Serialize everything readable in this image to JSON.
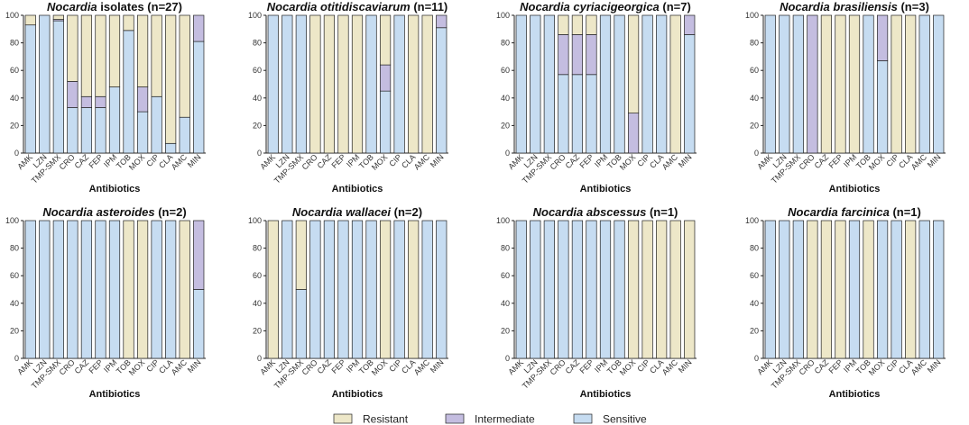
{
  "colors": {
    "Resistant": "#ede7c8",
    "Intermediate": "#c4bde0",
    "Sensitive": "#c6dcf1"
  },
  "legend": [
    {
      "key": "Resistant",
      "label": "Resistant"
    },
    {
      "key": "Intermediate",
      "label": "Intermediate"
    },
    {
      "key": "Sensitive",
      "label": "Sensitive"
    }
  ],
  "chart_data": [
    {
      "type": "bar",
      "stacked": true,
      "title_italic": "Nocardia",
      "title_rest": " isolates (n=27)",
      "xlabel": "Antibiotics",
      "ylim": [
        0,
        100
      ],
      "yticks": [
        0,
        20,
        40,
        60,
        80,
        100
      ],
      "categories": [
        "AMK",
        "LZN",
        "TMP-SMX",
        "CRO",
        "CAZ",
        "FEP",
        "IPM",
        "TOB",
        "MOX",
        "CIP",
        "CLA",
        "AMC",
        "MIN"
      ],
      "series": [
        {
          "name": "Sensitive",
          "values": [
            93,
            100,
            96,
            33,
            33,
            33,
            48,
            89,
            30,
            41,
            7,
            26,
            81
          ]
        },
        {
          "name": "Intermediate",
          "values": [
            0,
            0,
            1,
            19,
            8,
            8,
            0,
            0,
            18,
            0,
            0,
            0,
            19
          ]
        },
        {
          "name": "Resistant",
          "values": [
            7,
            0,
            3,
            48,
            59,
            59,
            52,
            11,
            52,
            59,
            93,
            74,
            0
          ]
        }
      ]
    },
    {
      "type": "bar",
      "stacked": true,
      "title_italic": "Nocardia otitidiscaviarum",
      "title_rest": " (n=11)",
      "xlabel": "Antibiotics",
      "ylim": [
        0,
        100
      ],
      "yticks": [
        0,
        20,
        40,
        60,
        80,
        100
      ],
      "categories": [
        "AMK",
        "LZN",
        "TMP-SMX",
        "CRO",
        "CAZ",
        "FEP",
        "IPM",
        "TOB",
        "MOX",
        "CIP",
        "CLA",
        "AMC",
        "MIN"
      ],
      "series": [
        {
          "name": "Sensitive",
          "values": [
            100,
            100,
            100,
            0,
            0,
            0,
            0,
            100,
            45,
            100,
            0,
            0,
            91
          ]
        },
        {
          "name": "Intermediate",
          "values": [
            0,
            0,
            0,
            0,
            0,
            0,
            0,
            0,
            19,
            0,
            0,
            0,
            9
          ]
        },
        {
          "name": "Resistant",
          "values": [
            0,
            0,
            0,
            100,
            100,
            100,
            100,
            0,
            36,
            0,
            100,
            100,
            0
          ]
        }
      ]
    },
    {
      "type": "bar",
      "stacked": true,
      "title_italic": "Nocardia cyriacigeorgica",
      "title_rest": " (n=7)",
      "xlabel": "Antibiotics",
      "ylim": [
        0,
        100
      ],
      "yticks": [
        0,
        20,
        40,
        60,
        80,
        100
      ],
      "categories": [
        "AMK",
        "LZN",
        "TMP-SMX",
        "CRO",
        "CAZ",
        "FEP",
        "IPM",
        "TOB",
        "MOX",
        "CIP",
        "CLA",
        "AMC",
        "MIN"
      ],
      "series": [
        {
          "name": "Sensitive",
          "values": [
            100,
            100,
            100,
            57,
            57,
            57,
            100,
            100,
            0,
            100,
            100,
            0,
            86
          ]
        },
        {
          "name": "Intermediate",
          "values": [
            0,
            0,
            0,
            29,
            29,
            29,
            0,
            0,
            29,
            0,
            0,
            0,
            14
          ]
        },
        {
          "name": "Resistant",
          "values": [
            0,
            0,
            0,
            14,
            14,
            14,
            0,
            0,
            71,
            0,
            0,
            100,
            0
          ]
        }
      ]
    },
    {
      "type": "bar",
      "stacked": true,
      "title_italic": "Nocardia brasiliensis",
      "title_rest": " (n=3)",
      "xlabel": "Antibiotics",
      "ylim": [
        0,
        100
      ],
      "yticks": [
        0,
        20,
        40,
        60,
        80,
        100
      ],
      "categories": [
        "AMK",
        "LZN",
        "TMP-SMX",
        "CRO",
        "CAZ",
        "FEP",
        "IPM",
        "TOB",
        "MOX",
        "CIP",
        "CLA",
        "AMC",
        "MIN"
      ],
      "series": [
        {
          "name": "Sensitive",
          "values": [
            100,
            100,
            100,
            0,
            0,
            0,
            0,
            100,
            67,
            0,
            0,
            100,
            100
          ]
        },
        {
          "name": "Intermediate",
          "values": [
            0,
            0,
            0,
            100,
            0,
            0,
            0,
            0,
            33,
            0,
            0,
            0,
            0
          ]
        },
        {
          "name": "Resistant",
          "values": [
            0,
            0,
            0,
            0,
            100,
            100,
            100,
            0,
            0,
            100,
            100,
            0,
            0
          ]
        }
      ]
    },
    {
      "type": "bar",
      "stacked": true,
      "title_italic": "Nocardia asteroides",
      "title_rest": " (n=2)",
      "xlabel": "Antibiotics",
      "ylim": [
        0,
        100
      ],
      "yticks": [
        0,
        20,
        40,
        60,
        80,
        100
      ],
      "categories": [
        "AMK",
        "LZN",
        "TMP-SMX",
        "CRO",
        "CAZ",
        "FEP",
        "IPM",
        "TOB",
        "MOX",
        "CIP",
        "CLA",
        "AMC",
        "MIN"
      ],
      "series": [
        {
          "name": "Sensitive",
          "values": [
            100,
            100,
            100,
            100,
            100,
            100,
            100,
            0,
            0,
            100,
            100,
            0,
            50
          ]
        },
        {
          "name": "Intermediate",
          "values": [
            0,
            0,
            0,
            0,
            0,
            0,
            0,
            0,
            0,
            0,
            0,
            0,
            50
          ]
        },
        {
          "name": "Resistant",
          "values": [
            0,
            0,
            0,
            0,
            0,
            0,
            0,
            100,
            100,
            0,
            0,
            100,
            0
          ]
        }
      ]
    },
    {
      "type": "bar",
      "stacked": true,
      "title_italic": "Nocardia wallacei",
      "title_rest": " (n=2)",
      "xlabel": "Antibiotics",
      "ylim": [
        0,
        100
      ],
      "yticks": [
        0,
        20,
        40,
        60,
        80,
        100
      ],
      "categories": [
        "AMK",
        "LZN",
        "TMP-SMX",
        "CRO",
        "CAZ",
        "FEP",
        "IPM",
        "TOB",
        "MOX",
        "CIP",
        "CLA",
        "AMC",
        "MIN"
      ],
      "series": [
        {
          "name": "Sensitive",
          "values": [
            0,
            100,
            50,
            100,
            100,
            100,
            100,
            100,
            0,
            100,
            0,
            100,
            100
          ]
        },
        {
          "name": "Intermediate",
          "values": [
            0,
            0,
            0,
            0,
            0,
            0,
            0,
            0,
            0,
            0,
            0,
            0,
            0
          ]
        },
        {
          "name": "Resistant",
          "values": [
            100,
            0,
            50,
            0,
            0,
            0,
            0,
            0,
            100,
            0,
            100,
            0,
            0
          ]
        }
      ]
    },
    {
      "type": "bar",
      "stacked": true,
      "title_italic": "Nocardia abscessus",
      "title_rest": " (n=1)",
      "xlabel": "Antibiotics",
      "ylim": [
        0,
        100
      ],
      "yticks": [
        0,
        20,
        40,
        60,
        80,
        100
      ],
      "categories": [
        "AMK",
        "LZN",
        "TMP-SMX",
        "CRO",
        "CAZ",
        "FEP",
        "IPM",
        "TOB",
        "MOX",
        "CIP",
        "CLA",
        "AMC",
        "MIN"
      ],
      "series": [
        {
          "name": "Sensitive",
          "values": [
            100,
            100,
            100,
            100,
            100,
            100,
            100,
            100,
            0,
            0,
            0,
            0,
            0
          ]
        },
        {
          "name": "Intermediate",
          "values": [
            0,
            0,
            0,
            0,
            0,
            0,
            0,
            0,
            0,
            0,
            0,
            0,
            0
          ]
        },
        {
          "name": "Resistant",
          "values": [
            0,
            0,
            0,
            0,
            0,
            0,
            0,
            0,
            100,
            100,
            100,
            100,
            100
          ]
        }
      ]
    },
    {
      "type": "bar",
      "stacked": true,
      "title_italic": "Nocardia farcinica",
      "title_rest": " (n=1)",
      "xlabel": "Antibiotics",
      "ylim": [
        0,
        100
      ],
      "yticks": [
        0,
        20,
        40,
        60,
        80,
        100
      ],
      "categories": [
        "AMK",
        "LZN",
        "TMP-SMX",
        "CRO",
        "CAZ",
        "FEP",
        "IPM",
        "TOB",
        "MOX",
        "CIP",
        "CLA",
        "AMC",
        "MIN"
      ],
      "series": [
        {
          "name": "Sensitive",
          "values": [
            100,
            100,
            100,
            0,
            0,
            0,
            100,
            0,
            100,
            100,
            0,
            100,
            100
          ]
        },
        {
          "name": "Intermediate",
          "values": [
            0,
            0,
            0,
            0,
            0,
            0,
            0,
            0,
            0,
            0,
            0,
            0,
            0
          ]
        },
        {
          "name": "Resistant",
          "values": [
            0,
            0,
            0,
            100,
            100,
            100,
            0,
            100,
            0,
            0,
            100,
            0,
            0
          ]
        }
      ]
    }
  ]
}
